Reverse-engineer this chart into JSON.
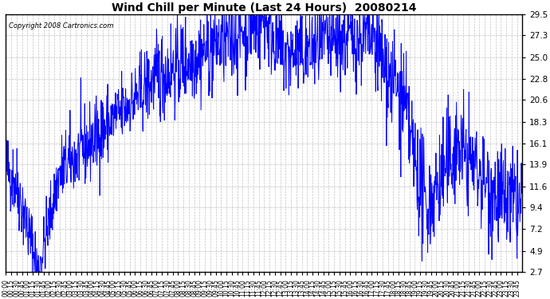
{
  "title": "Wind Chill per Minute (Last 24 Hours)  20080214",
  "copyright": "Copyright 2008 Cartronics.com",
  "yticks": [
    2.7,
    4.9,
    7.2,
    9.4,
    11.6,
    13.9,
    16.1,
    18.3,
    20.6,
    22.8,
    25.0,
    27.3,
    29.5
  ],
  "ymin": 2.7,
  "ymax": 29.5,
  "line_color": "#0000ff",
  "background_color": "#ffffff",
  "grid_color": "#c0c0c0",
  "xtick_interval": 15,
  "total_minutes": 1440,
  "fig_width": 6.9,
  "fig_height": 3.75,
  "dpi": 100
}
